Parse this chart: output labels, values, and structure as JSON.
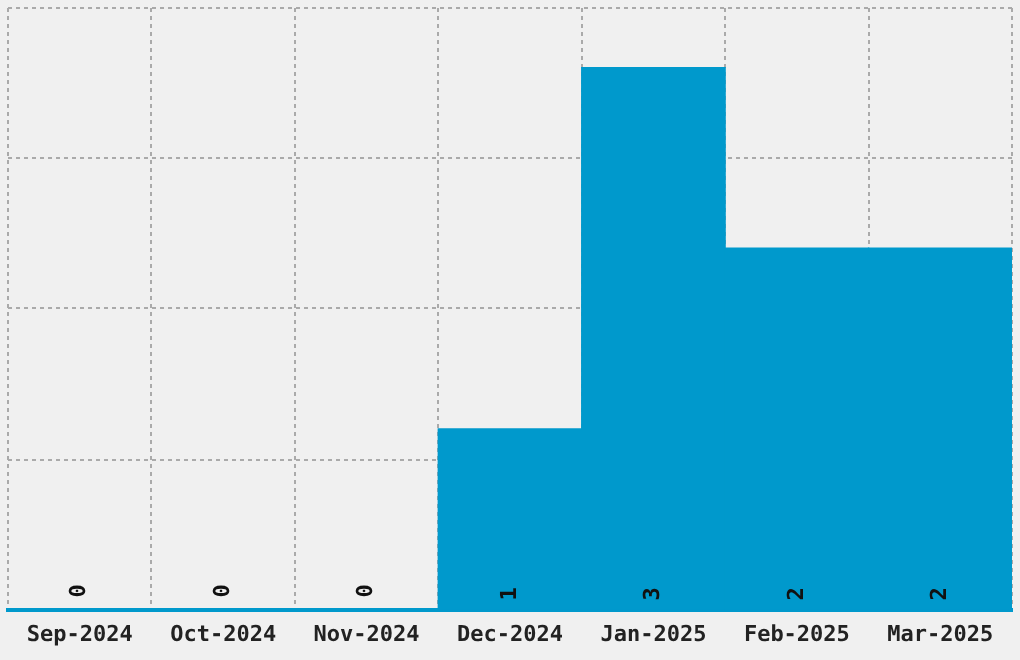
{
  "chart_data": {
    "type": "bar",
    "categories": [
      "Sep-2024",
      "Oct-2024",
      "Nov-2024",
      "Dec-2024",
      "Jan-2025",
      "Feb-2025",
      "Mar-2025"
    ],
    "values": [
      0,
      0,
      0,
      1,
      3,
      2,
      2
    ],
    "color": "#0099cc",
    "ylim": [
      0,
      3.33
    ],
    "yticks": [
      {
        "value": 0,
        "label": null
      },
      {
        "value": 0.83,
        "label": null
      },
      {
        "value": 1.67,
        "label": null
      },
      {
        "value": 2.5,
        "label": null
      },
      {
        "value": 3.33,
        "label": null
      }
    ],
    "tick_labels": "x",
    "grid": true,
    "data_labels": true
  }
}
